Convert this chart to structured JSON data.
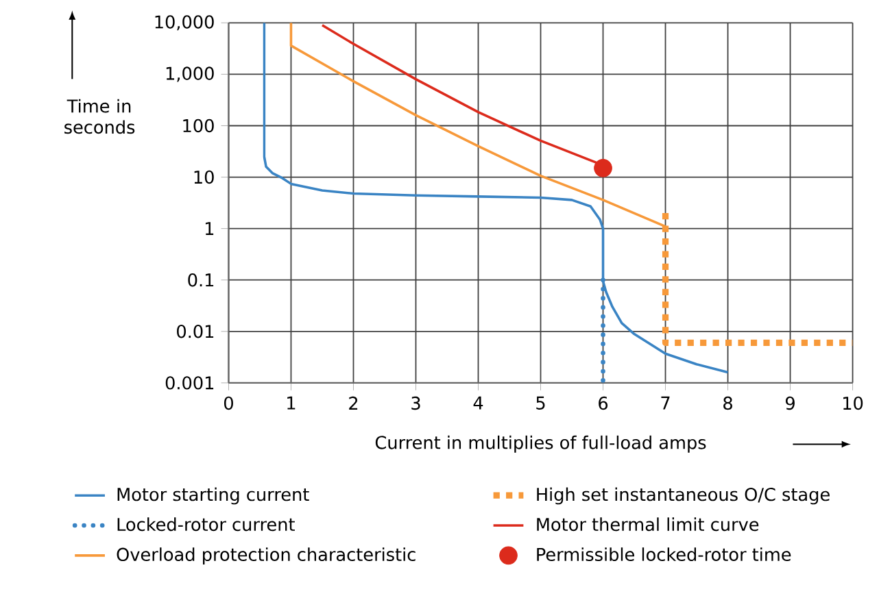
{
  "chart_data": {
    "type": "line",
    "xlabel": "Current in multiplies of full-load amps",
    "ylabel": "Time in seconds",
    "log": "y",
    "grid": true,
    "legend": "bottom",
    "xlim": [
      0,
      10
    ],
    "xticks": [
      0,
      1,
      2,
      3,
      4,
      5,
      6,
      7,
      8,
      9,
      10
    ],
    "ylim": [
      0.001,
      10000
    ],
    "yticks": [
      {
        "value": 0.001,
        "label": "0.001"
      },
      {
        "value": 0.01,
        "label": "0.01"
      },
      {
        "value": 0.1,
        "label": "0.1"
      },
      {
        "value": 1,
        "label": "1"
      },
      {
        "value": 10,
        "label": "10"
      },
      {
        "value": 100,
        "label": "100"
      },
      {
        "value": 1000,
        "label": "1,000"
      },
      {
        "value": 10000,
        "label": "10,000"
      }
    ],
    "series": [
      {
        "name": "Motor starting current",
        "color": "#3a84c4",
        "line_style": "solid",
        "x": [
          0.57,
          0.57,
          0.6,
          0.7,
          0.86,
          1,
          1.5,
          2,
          3,
          4,
          5,
          5.5,
          5.8,
          5.95,
          6,
          6,
          6.05,
          6.15,
          6.3,
          6.5,
          7,
          7.5,
          8
        ],
        "values": [
          10000,
          25,
          16,
          12,
          9.6,
          7.4,
          5.5,
          4.8,
          4.4,
          4.2,
          4,
          3.6,
          2.7,
          1.5,
          1,
          0.095,
          0.058,
          0.03,
          0.0145,
          0.0089,
          0.0037,
          0.0023,
          0.0016
        ]
      },
      {
        "name": "High set instantaneous O/C stage",
        "color": "#f7993a",
        "line_style": "dashed",
        "x": [
          7,
          7,
          10
        ],
        "values": [
          2,
          0.006,
          0.006
        ]
      },
      {
        "name": "Locked-rotor current",
        "color": "#3a84c4",
        "line_style": "dotted",
        "x": [
          6,
          6
        ],
        "values": [
          0.1,
          0.001
        ]
      },
      {
        "name": "Motor thermal limit curve",
        "color": "#dc2b1c",
        "line_style": "solid",
        "x": [
          1.5,
          2,
          3,
          4,
          5,
          5.9
        ],
        "values": [
          9000,
          3900,
          800,
          184,
          51,
          19
        ]
      },
      {
        "name": "Overload protection characteristic",
        "color": "#f7993a",
        "line_style": "solid",
        "x": [
          1,
          1,
          2,
          3,
          4,
          5,
          6,
          7
        ],
        "values": [
          10000,
          3600,
          730,
          160,
          40,
          10.6,
          3.6,
          1.1
        ]
      },
      {
        "name": "Permissible locked-rotor time",
        "type": "scatter",
        "color": "#dc2b1c",
        "x": [
          6
        ],
        "values": [
          15
        ]
      }
    ]
  }
}
